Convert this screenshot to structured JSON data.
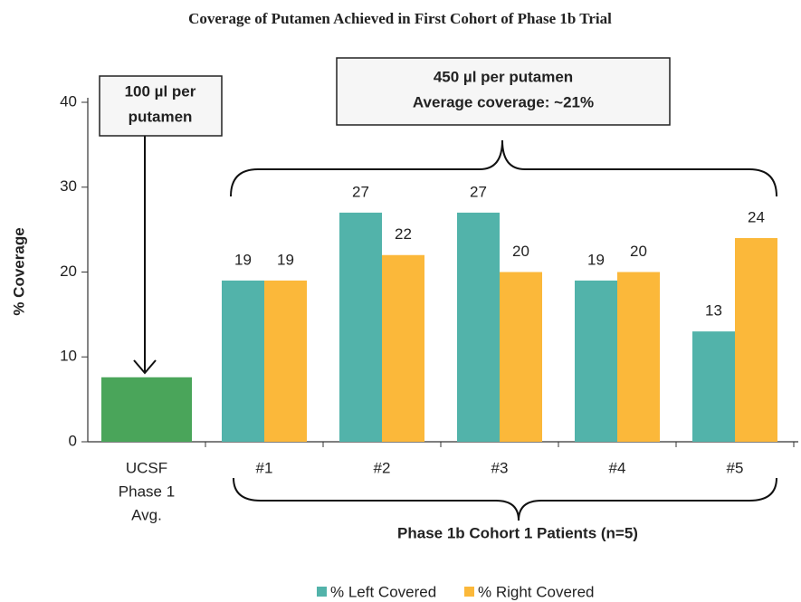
{
  "chart_data": {
    "type": "bar",
    "title": "Coverage of Putamen Achieved in First Cohort of Phase 1b Trial",
    "y_label": "% Coverage",
    "x_label": "Phase 1b Cohort 1 Patients (n=5)",
    "categories": [
      [
        "UCSF",
        "Phase 1",
        "Avg."
      ],
      "#1",
      "#2",
      "#3",
      "#4",
      "#5"
    ],
    "series": [
      {
        "name": "% Left Covered",
        "color": "#52b3aa",
        "point_colors": [
          "#4aa55a",
          null,
          null,
          null,
          null,
          null
        ],
        "values": [
          7.6,
          19,
          27,
          27,
          19,
          13
        ],
        "value_labels": [
          null,
          "19",
          "27",
          "27",
          "19",
          "13"
        ]
      },
      {
        "name": "% Right Covered",
        "color": "#fbb83a",
        "values": [
          null,
          19,
          22,
          20,
          20,
          24
        ],
        "value_labels": [
          null,
          "19",
          "22",
          "20",
          "20",
          "24"
        ]
      }
    ],
    "ylim": [
      0,
      40
    ],
    "yticks": [
      0,
      10,
      20,
      30,
      40
    ],
    "annotations": [
      {
        "text": [
          "100 µl per",
          "putamen"
        ]
      },
      {
        "text": [
          "450 µl per putamen",
          "Average coverage: ~21%"
        ]
      }
    ],
    "legend": "bottom"
  }
}
